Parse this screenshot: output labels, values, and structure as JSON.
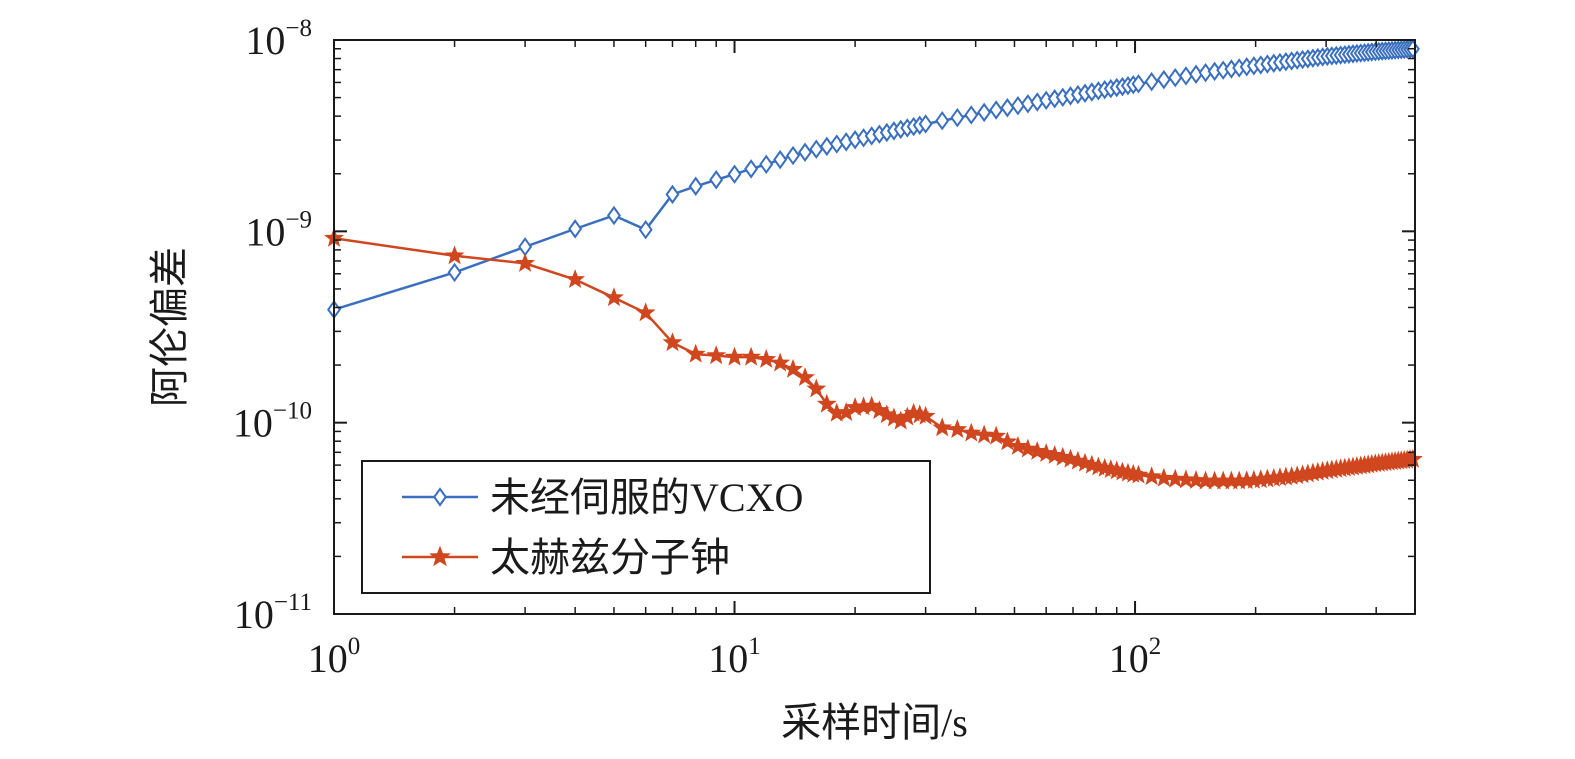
{
  "chart_data": {
    "type": "line",
    "title": "",
    "xlabel": "采样时间/s",
    "ylabel": "阿伦偏差",
    "xscale": "log",
    "yscale": "log",
    "xlim": [
      1,
      500
    ],
    "ylim": [
      1e-11,
      1e-08
    ],
    "x_ticks": [
      {
        "value": 1,
        "base": "10",
        "exp": "0"
      },
      {
        "value": 10,
        "base": "10",
        "exp": "1"
      },
      {
        "value": 100,
        "base": "10",
        "exp": "2"
      }
    ],
    "y_ticks": [
      {
        "value": 1e-08,
        "base": "10",
        "exp": "−8"
      },
      {
        "value": 1e-09,
        "base": "10",
        "exp": "−9"
      },
      {
        "value": 1e-10,
        "base": "10",
        "exp": "−10"
      },
      {
        "value": 1e-11,
        "base": "10",
        "exp": "−11"
      }
    ],
    "grid": false,
    "legend_position": "bottom-left",
    "series": [
      {
        "name": "未经伺服的VCXO",
        "color": "#3a6fc0",
        "marker": "diamond",
        "points": [
          [
            1,
            3.9e-10
          ],
          [
            2,
            6.1e-10
          ],
          [
            3,
            8.3e-10
          ],
          [
            4,
            1.03e-09
          ],
          [
            5,
            1.21e-09
          ],
          [
            6,
            1.02e-09
          ],
          [
            7,
            1.56e-09
          ],
          [
            8,
            1.72e-09
          ],
          [
            9,
            1.86e-09
          ],
          [
            10,
            1.99e-09
          ],
          [
            11,
            2.12e-09
          ],
          [
            12,
            2.24e-09
          ],
          [
            13,
            2.37e-09
          ],
          [
            14,
            2.49e-09
          ],
          [
            15,
            2.59e-09
          ],
          [
            17,
            2.78e-09
          ],
          [
            20,
            3.01e-09
          ],
          [
            25,
            3.35e-09
          ],
          [
            30,
            3.64e-09
          ],
          [
            40,
            4.1e-09
          ],
          [
            50,
            4.5e-09
          ],
          [
            60,
            4.84e-09
          ],
          [
            80,
            5.4e-09
          ],
          [
            100,
            5.86e-09
          ],
          [
            150,
            6.75e-09
          ],
          [
            200,
            7.35e-09
          ],
          [
            300,
            8.2e-09
          ],
          [
            400,
            8.7e-09
          ],
          [
            500,
            9e-09
          ]
        ]
      },
      {
        "name": "太赫兹分子钟",
        "color": "#d0461e",
        "marker": "star",
        "points": [
          [
            1,
            9.2e-10
          ],
          [
            2,
            7.45e-10
          ],
          [
            3,
            6.8e-10
          ],
          [
            4,
            5.6e-10
          ],
          [
            5,
            4.5e-10
          ],
          [
            6,
            3.75e-10
          ],
          [
            7,
            2.62e-10
          ],
          [
            8,
            2.28e-10
          ],
          [
            9,
            2.24e-10
          ],
          [
            10,
            2.2e-10
          ],
          [
            11,
            2.2e-10
          ],
          [
            12,
            2.14e-10
          ],
          [
            13,
            2.05e-10
          ],
          [
            14,
            1.9e-10
          ],
          [
            15,
            1.72e-10
          ],
          [
            16,
            1.5e-10
          ],
          [
            17,
            1.25e-10
          ],
          [
            18,
            1.12e-10
          ],
          [
            19,
            1.13e-10
          ],
          [
            20,
            1.2e-10
          ],
          [
            22,
            1.22e-10
          ],
          [
            24,
            1.1e-10
          ],
          [
            26,
            1.02e-10
          ],
          [
            28,
            1.12e-10
          ],
          [
            30,
            1.08e-10
          ],
          [
            33,
            9.4e-11
          ],
          [
            36,
            9.2e-11
          ],
          [
            40,
            8.7e-11
          ],
          [
            45,
            8.5e-11
          ],
          [
            50,
            7.6e-11
          ],
          [
            55,
            7.2e-11
          ],
          [
            60,
            6.9e-11
          ],
          [
            70,
            6.4e-11
          ],
          [
            80,
            5.9e-11
          ],
          [
            90,
            5.6e-11
          ],
          [
            100,
            5.35e-11
          ],
          [
            120,
            5.1e-11
          ],
          [
            150,
            4.95e-11
          ],
          [
            180,
            4.95e-11
          ],
          [
            200,
            5e-11
          ],
          [
            250,
            5.25e-11
          ],
          [
            300,
            5.6e-11
          ],
          [
            400,
            6.1e-11
          ],
          [
            500,
            6.45e-11
          ]
        ]
      }
    ]
  }
}
